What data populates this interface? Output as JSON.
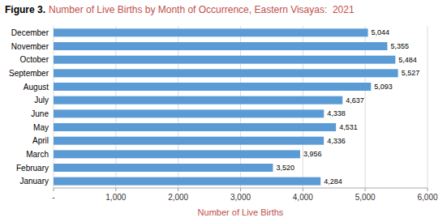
{
  "chart_data": {
    "type": "bar",
    "orientation": "horizontal",
    "title": "Figure 3.",
    "subtitle": "Number of Live Births by Month of Occurrence, Eastern Visayas:  2021",
    "xlabel": "Number of Live Births",
    "categories": [
      "January",
      "February",
      "March",
      "April",
      "May",
      "June",
      "July",
      "August",
      "September",
      "October",
      "November",
      "December"
    ],
    "values": [
      4284,
      3520,
      3956,
      4336,
      4531,
      4338,
      4637,
      5093,
      5527,
      5484,
      5355,
      5044
    ],
    "value_labels": [
      "4,284",
      "3,520",
      "3,956",
      "4,336",
      "4,531",
      "4,338",
      "4,637",
      "5,093",
      "5,527",
      "5,484",
      "5,355",
      "5,044"
    ],
    "data_labels": true,
    "color": "#5B9BD5",
    "xlim": [
      0,
      6000
    ],
    "xticks": [
      {
        "value": 0,
        "label": "-"
      },
      {
        "value": 1000,
        "label": "1,000"
      },
      {
        "value": 2000,
        "label": "2,000"
      },
      {
        "value": 3000,
        "label": "3,000"
      },
      {
        "value": 4000,
        "label": "4,000"
      },
      {
        "value": 5000,
        "label": "5,000"
      },
      {
        "value": 6000,
        "label": "6,000"
      }
    ],
    "grid": true
  }
}
